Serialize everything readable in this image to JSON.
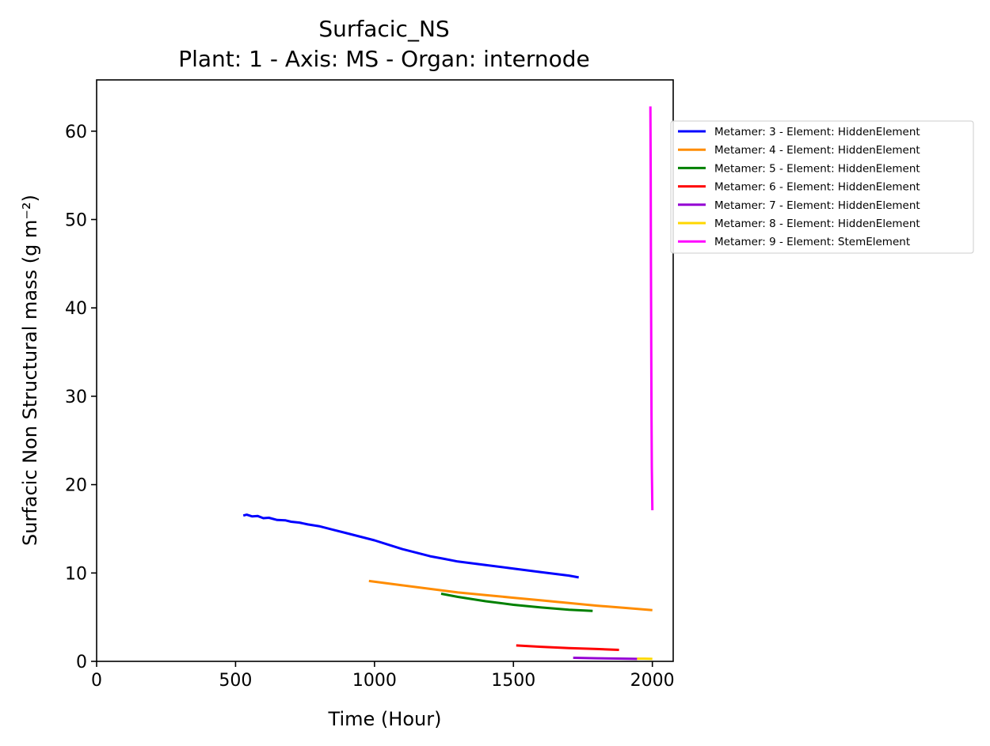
{
  "chart_data": {
    "type": "line",
    "title": "Surfacic_NS",
    "subtitle": "Plant: 1 - Axis: MS - Organ: internode",
    "xlabel": "Time (Hour)",
    "ylabel": "Surfacic Non Structural mass (g m⁻²)",
    "xlim": [
      0,
      2075
    ],
    "ylim": [
      0,
      65.8
    ],
    "xticks": [
      0,
      500,
      1000,
      1500,
      2000
    ],
    "yticks": [
      0,
      10,
      20,
      30,
      40,
      50,
      60
    ],
    "grid": false,
    "legend_position": "upper-right-outside",
    "series": [
      {
        "name": "Metamer: 3 - Element: HiddenElement",
        "color": "#0000ff",
        "points": [
          [
            528,
            16.5
          ],
          [
            540,
            16.6
          ],
          [
            560,
            16.4
          ],
          [
            580,
            16.45
          ],
          [
            600,
            16.2
          ],
          [
            620,
            16.25
          ],
          [
            650,
            16.0
          ],
          [
            680,
            15.95
          ],
          [
            700,
            15.8
          ],
          [
            730,
            15.7
          ],
          [
            760,
            15.5
          ],
          [
            800,
            15.3
          ],
          [
            850,
            14.9
          ],
          [
            900,
            14.5
          ],
          [
            950,
            14.1
          ],
          [
            1000,
            13.7
          ],
          [
            1050,
            13.2
          ],
          [
            1100,
            12.7
          ],
          [
            1150,
            12.3
          ],
          [
            1200,
            11.9
          ],
          [
            1250,
            11.6
          ],
          [
            1300,
            11.3
          ],
          [
            1400,
            10.9
          ],
          [
            1500,
            10.5
          ],
          [
            1600,
            10.1
          ],
          [
            1700,
            9.7
          ],
          [
            1735,
            9.5
          ]
        ]
      },
      {
        "name": "Metamer: 4 - Element: HiddenElement",
        "color": "#ff8c00",
        "points": [
          [
            980,
            9.1
          ],
          [
            1100,
            8.6
          ],
          [
            1200,
            8.2
          ],
          [
            1300,
            7.8
          ],
          [
            1400,
            7.5
          ],
          [
            1500,
            7.2
          ],
          [
            1600,
            6.9
          ],
          [
            1700,
            6.6
          ],
          [
            1800,
            6.3
          ],
          [
            1900,
            6.05
          ],
          [
            2000,
            5.8
          ]
        ]
      },
      {
        "name": "Metamer: 5 - Element: HiddenElement",
        "color": "#008000",
        "points": [
          [
            1240,
            7.65
          ],
          [
            1300,
            7.3
          ],
          [
            1400,
            6.8
          ],
          [
            1500,
            6.4
          ],
          [
            1600,
            6.1
          ],
          [
            1700,
            5.85
          ],
          [
            1785,
            5.7
          ]
        ]
      },
      {
        "name": "Metamer: 6 - Element: HiddenElement",
        "color": "#ff0000",
        "points": [
          [
            1510,
            1.8
          ],
          [
            1600,
            1.65
          ],
          [
            1700,
            1.5
          ],
          [
            1800,
            1.4
          ],
          [
            1880,
            1.3
          ]
        ]
      },
      {
        "name": "Metamer: 7 - Element: HiddenElement",
        "color": "#9400d3",
        "points": [
          [
            1715,
            0.4
          ],
          [
            1800,
            0.35
          ],
          [
            1900,
            0.3
          ],
          [
            1945,
            0.28
          ]
        ]
      },
      {
        "name": "Metamer: 8 - Element: HiddenElement",
        "color": "#ffd700",
        "points": [
          [
            1945,
            0.3
          ],
          [
            1970,
            0.3
          ],
          [
            2000,
            0.28
          ]
        ]
      },
      {
        "name": "Metamer: 9 - Element: StemElement",
        "color": "#ff00ff",
        "points": [
          [
            1993,
            62.8
          ],
          [
            1994,
            55.0
          ],
          [
            1995,
            45.0
          ],
          [
            1996,
            35.0
          ],
          [
            1997,
            28.0
          ],
          [
            1998,
            22.0
          ],
          [
            2000,
            17.1
          ]
        ]
      }
    ]
  }
}
